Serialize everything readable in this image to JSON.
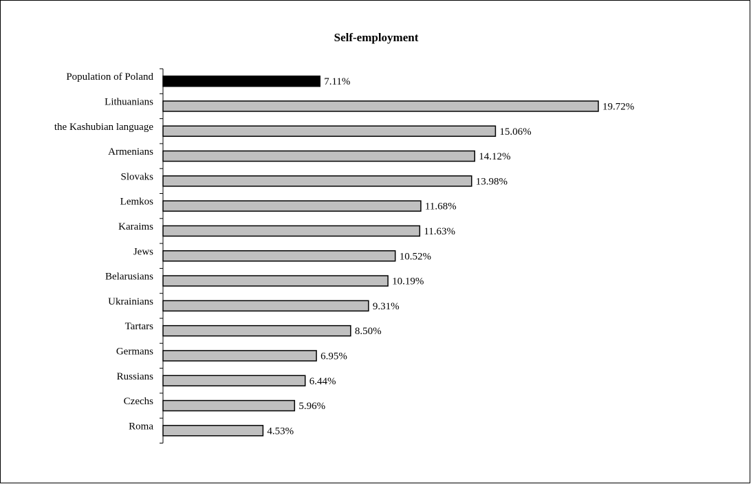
{
  "chart_data": {
    "type": "bar",
    "orientation": "horizontal",
    "title": "Self-employment",
    "xlabel": "",
    "ylabel": "",
    "categories": [
      "Population of Poland",
      "Lithuanians",
      "the Kashubian language",
      "Armenians",
      "Slovaks",
      "Lemkos",
      "Karaims",
      "Jews",
      "Belarusians",
      "Ukrainians",
      "Tartars",
      "Germans",
      "Russians",
      "Czechs",
      "Roma"
    ],
    "values": [
      7.11,
      19.72,
      15.06,
      14.12,
      13.98,
      11.68,
      11.63,
      10.52,
      10.19,
      9.31,
      8.5,
      6.95,
      6.44,
      5.96,
      4.53
    ],
    "value_labels": [
      "7.11%",
      "19.72%",
      "15.06%",
      "14.12%",
      "13.98%",
      "11.68%",
      "11.63%",
      "10.52%",
      "10.19%",
      "9.31%",
      "8.50%",
      "6.95%",
      "6.44%",
      "5.96%",
      "4.53%"
    ],
    "xlim": [
      0,
      20
    ],
    "grid": false,
    "legend": "none",
    "colors": {
      "highlight": "#000000",
      "default": "#c0c0c0",
      "outline": "#000000"
    },
    "highlight_index": 0
  }
}
